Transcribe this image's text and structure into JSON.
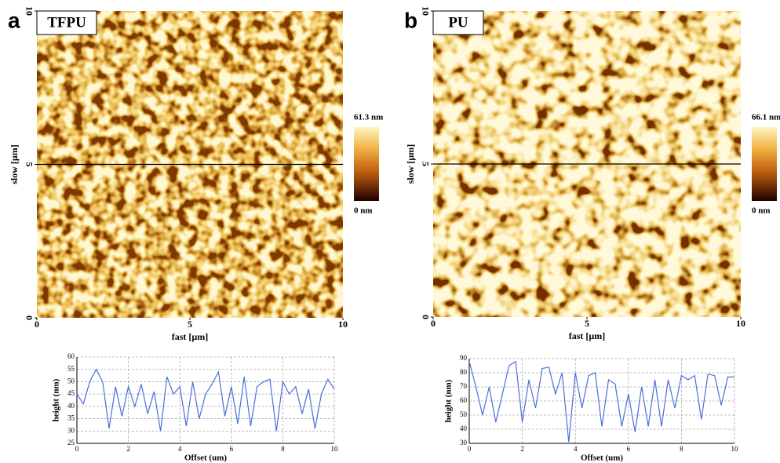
{
  "chart_data": [
    {
      "type": "image",
      "panel": "a",
      "title": "TFPU",
      "xlabel": "fast [µm]",
      "ylabel": "slow [µm]",
      "xlim": [
        0,
        10
      ],
      "xticks": [
        0,
        5,
        10
      ],
      "ylim": [
        0,
        10
      ],
      "yticks": [
        0,
        5,
        10
      ],
      "colorbar": {
        "lim": [
          0,
          61.3
        ],
        "ticks": [
          {
            "value": 61.3,
            "label": "61.3 nm"
          },
          {
            "value": 0,
            "label": "0 nm"
          }
        ]
      }
    },
    {
      "type": "image",
      "panel": "b",
      "title": "PU",
      "xlabel": "fast [µm]",
      "ylabel": "slow [µm]",
      "xlim": [
        0,
        10
      ],
      "xticks": [
        0,
        5,
        10
      ],
      "ylim": [
        0,
        10
      ],
      "yticks": [
        0,
        5,
        10
      ],
      "colorbar": {
        "lim": [
          0,
          66.1
        ],
        "ticks": [
          {
            "value": 66.1,
            "label": "66.1 nm"
          },
          {
            "value": 0,
            "label": "0 nm"
          }
        ]
      }
    },
    {
      "type": "line",
      "xlabel": "Offset (um)",
      "ylabel": "height (nm)",
      "color": "#4a6fdc",
      "grid": true,
      "xlim": [
        0,
        10
      ],
      "xticks": [
        0,
        2,
        4,
        6,
        8,
        10
      ],
      "ylim": [
        25,
        60
      ],
      "yticks": [
        25,
        30,
        35,
        40,
        45,
        50,
        55,
        60
      ],
      "x": [
        0,
        0.25,
        0.5,
        0.75,
        1,
        1.25,
        1.5,
        1.75,
        2,
        2.25,
        2.5,
        2.75,
        3,
        3.25,
        3.5,
        3.75,
        4,
        4.25,
        4.5,
        4.75,
        5,
        5.25,
        5.5,
        5.75,
        6,
        6.25,
        6.5,
        6.75,
        7,
        7.25,
        7.5,
        7.75,
        8,
        8.25,
        8.5,
        8.75,
        9,
        9.25,
        9.5,
        9.75,
        10
      ],
      "values": [
        45,
        41,
        50,
        55,
        50,
        31,
        48,
        36,
        48,
        40,
        49,
        37,
        46,
        30,
        52,
        45,
        48,
        32,
        50,
        35,
        45,
        49,
        54,
        36,
        48,
        33,
        52,
        32,
        48,
        50,
        51,
        30,
        50,
        45,
        48,
        37,
        47,
        31,
        45,
        51,
        47
      ]
    },
    {
      "type": "line",
      "xlabel": "Offset (um)",
      "ylabel": "height (nm)",
      "color": "#4a6fdc",
      "grid": true,
      "xlim": [
        0,
        10
      ],
      "xticks": [
        0,
        2,
        4,
        6,
        8,
        10
      ],
      "ylim": [
        30,
        90
      ],
      "yticks": [
        30,
        40,
        50,
        60,
        70,
        80,
        90
      ],
      "x": [
        0,
        0.25,
        0.5,
        0.75,
        1,
        1.25,
        1.5,
        1.75,
        2,
        2.25,
        2.5,
        2.75,
        3,
        3.25,
        3.5,
        3.75,
        4,
        4.25,
        4.5,
        4.75,
        5,
        5.25,
        5.5,
        5.75,
        6,
        6.25,
        6.5,
        6.75,
        7,
        7.25,
        7.5,
        7.75,
        8,
        8.25,
        8.5,
        8.75,
        9,
        9.25,
        9.5,
        9.75,
        10
      ],
      "values": [
        88,
        70,
        50,
        70,
        45,
        65,
        85,
        88,
        45,
        75,
        55,
        83,
        84,
        65,
        80,
        31,
        80,
        55,
        78,
        80,
        42,
        75,
        72,
        42,
        65,
        38,
        70,
        42,
        75,
        42,
        75,
        55,
        78,
        75,
        78,
        47,
        79,
        78,
        57,
        77,
        77
      ]
    }
  ]
}
